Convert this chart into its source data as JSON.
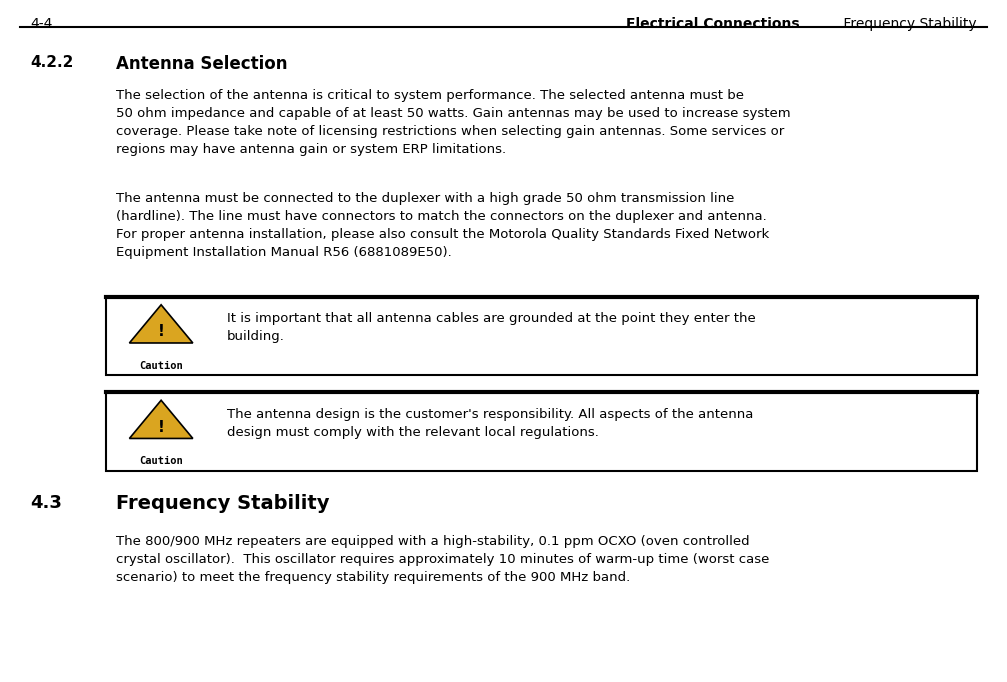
{
  "header_left": "4-4",
  "header_right_bold": "Electrical Connections",
  "header_right_normal": " Frequency Stability",
  "section_422_label": "4.2.2",
  "section_422_title": "Antenna Selection",
  "para1": "The selection of the antenna is critical to system performance. The selected antenna must be\n50 ohm impedance and capable of at least 50 watts. Gain antennas may be used to increase system\ncoverage. Please take note of licensing restrictions when selecting gain antennas. Some services or\nregions may have antenna gain or system ERP limitations.",
  "para2": "The antenna must be connected to the duplexer with a high grade 50 ohm transmission line\n(hardline). The line must have connectors to match the connectors on the duplexer and antenna.\nFor proper antenna installation, please also consult the Motorola Quality Standards Fixed Network\nEquipment Installation Manual R56 (6881089E50).",
  "caution1_text": "It is important that all antenna cables are grounded at the point they enter the\nbuilding.",
  "caution2_text": "The antenna design is the customer's responsibility. All aspects of the antenna\ndesign must comply with the relevant local regulations.",
  "caution_label": "Caution",
  "section_43_label": "4.3",
  "section_43_title": "Frequency Stability",
  "para3": "The 800/900 MHz repeaters are equipped with a high-stability, 0.1 ppm OCXO (oven controlled\ncrystal oscillator).  This oscillator requires approximately 10 minutes of warm-up time (worst case\nscenario) to meet the frequency stability requirements of the 900 MHz band.",
  "bg_color": "#ffffff",
  "text_color": "#000000",
  "box_border_color": "#000000",
  "caution_label_color": "#000000",
  "warning_triangle_color": "#DAA520",
  "warning_triangle_border": "#000000"
}
